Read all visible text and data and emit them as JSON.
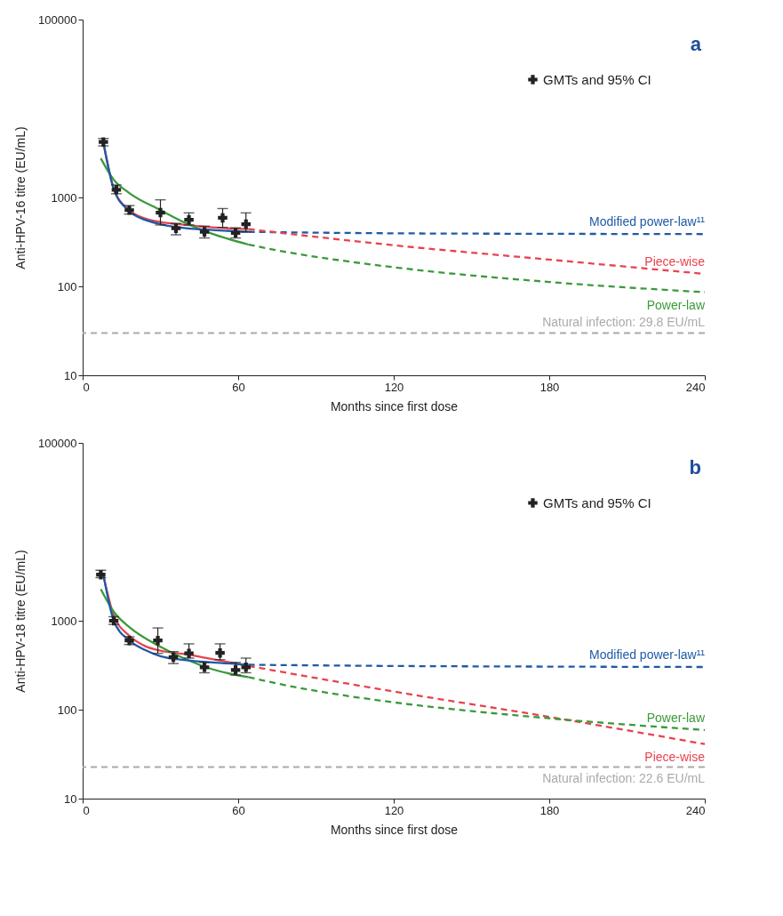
{
  "chart_data": [
    {
      "type": "line",
      "annotations": [
        "a"
      ],
      "xlabel": "Months since first dose",
      "ylabel": "Anti-HPV-16 titre (EU/mL)",
      "xlim": [
        0,
        240
      ],
      "xticks": [
        0,
        60,
        120,
        180,
        240
      ],
      "ylim": [
        10,
        100000
      ],
      "yticks": [
        10,
        100,
        1000,
        100000
      ],
      "log": "y",
      "grid": false,
      "legend": "top right",
      "series": [
        {
          "name": "GMTs and 95% CI",
          "type": "scatter",
          "marker": "cross",
          "color": "#222222",
          "x": [
            8,
            13,
            18,
            30,
            36,
            41,
            47,
            54,
            59,
            63
          ],
          "values": [
            4200,
            1220,
            720,
            675,
            450,
            560,
            410,
            590,
            400,
            500
          ],
          "errors": [
            [
              3800,
              4600
            ],
            [
              1100,
              1380
            ],
            [
              650,
              810
            ],
            [
              490,
              940
            ],
            [
              380,
              510
            ],
            [
              490,
              670
            ],
            [
              350,
              475
            ],
            [
              460,
              750
            ],
            [
              350,
              455
            ],
            [
              410,
              670
            ]
          ]
        },
        {
          "type": "line",
          "line_style": "solid",
          "color": "#e8424f",
          "x": [
            8,
            12,
            18,
            24,
            30,
            40,
            50,
            64
          ],
          "values": [
            4100,
            1250,
            720,
            580,
            530,
            490,
            460,
            440
          ]
        },
        {
          "type": "line",
          "line_style": "solid",
          "color": "#3a9a3a",
          "x": [
            7,
            12,
            18,
            30,
            40,
            50,
            64
          ],
          "values": [
            2750,
            1580,
            1120,
            720,
            510,
            390,
            295
          ]
        },
        {
          "type": "line",
          "line_style": "solid",
          "color": "#1f5aa6",
          "x": [
            8,
            12,
            18,
            24,
            30,
            40,
            50,
            64
          ],
          "values": [
            4200,
            1250,
            700,
            560,
            500,
            450,
            430,
            410
          ]
        },
        {
          "name": "Modified power-law¹¹",
          "type": "line",
          "line_style": "dashed",
          "color": "#1f5aa6",
          "x": [
            64,
            120,
            180,
            240
          ],
          "values": [
            410,
            395,
            390,
            387
          ]
        },
        {
          "name": "Piece-wise",
          "type": "line",
          "line_style": "dashed",
          "color": "#e8424f",
          "x": [
            64,
            120,
            180,
            240
          ],
          "values": [
            440,
            290,
            200,
            138
          ]
        },
        {
          "name": "Power-law",
          "type": "line",
          "line_style": "dashed",
          "color": "#3a9a3a",
          "x": [
            64,
            80,
            100,
            120,
            180,
            240
          ],
          "values": [
            295,
            239,
            195,
            164,
            112,
            86
          ]
        }
      ],
      "ref_lines": [
        {
          "axis": "y",
          "value": 29.8,
          "label": "Natural infection: 29.8 EU/mL",
          "color": "#aaaaaa",
          "line_style": "dashed"
        }
      ]
    },
    {
      "type": "line",
      "annotations": [
        "b"
      ],
      "xlabel": "Months since first dose",
      "ylabel": "Anti-HPV-18 titre (EU/mL)",
      "xlim": [
        0,
        240
      ],
      "xticks": [
        0,
        60,
        120,
        180,
        240
      ],
      "ylim": [
        10,
        100000
      ],
      "yticks": [
        10,
        100,
        1000,
        100000
      ],
      "log": "y",
      "grid": false,
      "legend": "top right",
      "series": [
        {
          "name": "GMTs and 95% CI",
          "type": "scatter",
          "marker": "cross",
          "color": "#222222",
          "x": [
            7,
            12,
            18,
            29,
            35,
            41,
            47,
            53,
            59,
            63
          ],
          "values": [
            3300,
            1000,
            600,
            600,
            390,
            430,
            300,
            435,
            280,
            300
          ],
          "errors": [
            [
              3050,
              3690
            ],
            [
              910,
              1110
            ],
            [
              540,
              660
            ],
            [
              430,
              830
            ],
            [
              330,
              450
            ],
            [
              380,
              550
            ],
            [
              260,
              340
            ],
            [
              365,
              550
            ],
            [
              245,
              340
            ],
            [
              260,
              380
            ]
          ]
        },
        {
          "type": "line",
          "line_style": "solid",
          "color": "#e8424f",
          "x": [
            8,
            12,
            18,
            24,
            30,
            40,
            50,
            64
          ],
          "values": [
            3200,
            1150,
            680,
            520,
            460,
            420,
            370,
            310
          ]
        },
        {
          "type": "line",
          "line_style": "solid",
          "color": "#3a9a3a",
          "x": [
            7,
            12,
            18,
            30,
            40,
            50,
            64
          ],
          "values": [
            2260,
            1260,
            850,
            510,
            367,
            285,
            232
          ]
        },
        {
          "type": "line",
          "line_style": "solid",
          "color": "#1f5aa6",
          "x": [
            8,
            12,
            18,
            24,
            30,
            40,
            50,
            64
          ],
          "values": [
            3300,
            1000,
            600,
            470,
            400,
            360,
            340,
            320
          ]
        },
        {
          "name": "Modified power-law¹¹",
          "type": "line",
          "line_style": "dashed",
          "color": "#1f5aa6",
          "x": [
            64,
            120,
            180,
            240
          ],
          "values": [
            320,
            310,
            305,
            302
          ]
        },
        {
          "name": "Piece-wise",
          "type": "line",
          "line_style": "dashed",
          "color": "#e8424f",
          "x": [
            64,
            120,
            180,
            240
          ],
          "values": [
            310,
            160,
            83,
            41
          ]
        },
        {
          "name": "Power-law",
          "type": "line",
          "line_style": "dashed",
          "color": "#3a9a3a",
          "x": [
            64,
            80,
            100,
            120,
            180,
            240
          ],
          "values": [
            232,
            184,
            146,
            121,
            80,
            59
          ]
        }
      ],
      "ref_lines": [
        {
          "axis": "y",
          "value": 22.6,
          "label": "Natural infection: 22.6 EU/mL",
          "color": "#aaaaaa",
          "line_style": "dashed"
        }
      ]
    }
  ]
}
